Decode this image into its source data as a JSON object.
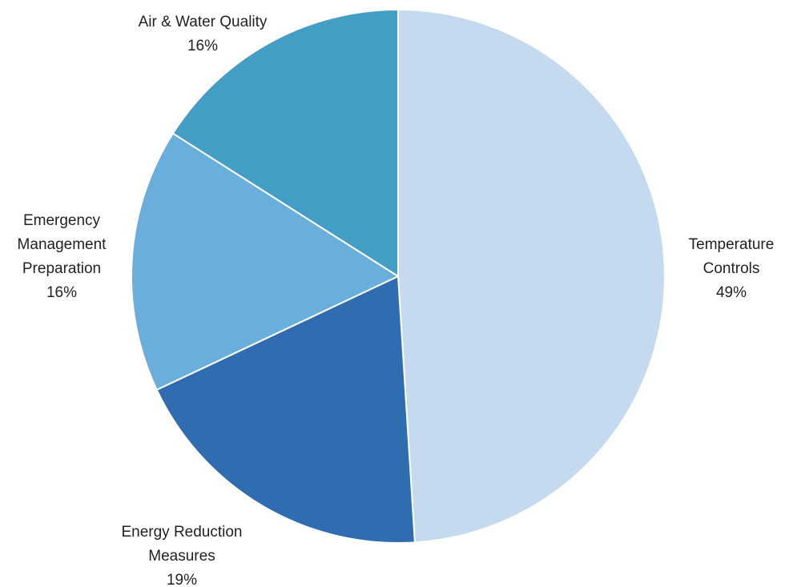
{
  "chart_data": {
    "type": "pie",
    "title": "",
    "start": "12 o'clock",
    "direction": "clockwise",
    "slices": [
      {
        "label": [
          "Temperature",
          "Controls"
        ],
        "value": 49,
        "display": "49%",
        "color": "#c5daee"
      },
      {
        "label": [
          "Energy Reduction",
          "Measures"
        ],
        "value": 19,
        "display": "19%",
        "color": "#2f6cb0"
      },
      {
        "label": [
          "Emergency",
          "Management",
          "Preparation"
        ],
        "value": 16,
        "display": "16%",
        "color": "#6aaedb"
      },
      {
        "label": [
          "Air & Water Quality"
        ],
        "value": 16,
        "display": "16%",
        "color": "#429ec4"
      }
    ]
  }
}
